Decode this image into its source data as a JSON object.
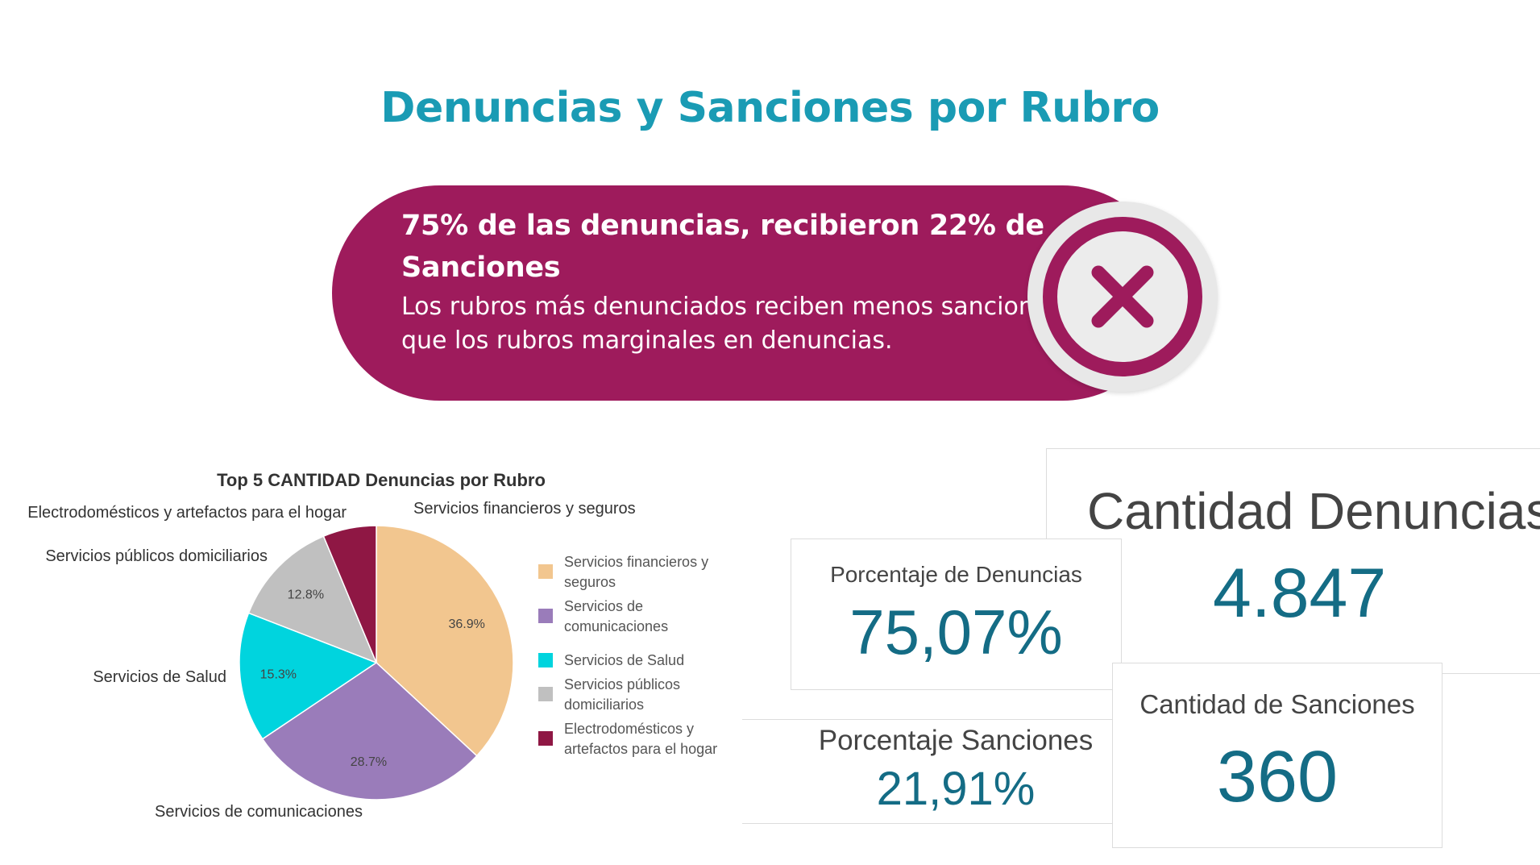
{
  "page": {
    "title": "Denuncias y Sanciones por Rubro",
    "banner": {
      "headline": "75% de las denuncias, recibieron 22% de Sanciones",
      "body": "Los rubros más denunciados reciben menos sanciones que los rubros marginales en denuncias.",
      "icon": "close-x-circle-icon",
      "color": "#9e1b5c"
    }
  },
  "kpis": {
    "cantidad_denuncias": {
      "label": "Cantidad Denuncias",
      "value": "4.847"
    },
    "porcentaje_denuncias": {
      "label": "Porcentaje de Denuncias",
      "value": "75,07%"
    },
    "porcentaje_sanciones": {
      "label": "Porcentaje Sanciones",
      "value": "21,91%"
    },
    "cantidad_sanciones": {
      "label": "Cantidad de Sanciones",
      "value": "360"
    }
  },
  "chart_data": {
    "type": "pie",
    "title": "Top 5 CANTIDAD Denuncias por Rubro",
    "legend_position": "right",
    "categories": [
      "Servicios financieros y seguros",
      "Servicios de comunicaciones",
      "Servicios de Salud",
      "Servicios públicos domiciliarios",
      "Electrodomésticos y artefactos para el hogar"
    ],
    "legend_labels": [
      [
        "Servicios financieros y",
        "seguros"
      ],
      [
        "Servicios de",
        "comunicaciones"
      ],
      [
        "Servicios de Salud"
      ],
      [
        "Servicios públicos",
        "domiciliarios"
      ],
      [
        "Electrodomésticos y",
        "artefactos para el hogar"
      ]
    ],
    "values": [
      36.9,
      28.7,
      15.3,
      12.8,
      6.3
    ],
    "data_labels": [
      "36.9%",
      "28.7%",
      "15.3%",
      "12.8%",
      ""
    ],
    "colors": [
      "#f2c68f",
      "#9a7cba",
      "#00d4de",
      "#c0c0c0",
      "#8f1744"
    ]
  }
}
